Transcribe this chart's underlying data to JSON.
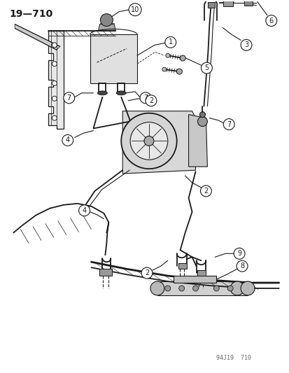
{
  "title": "19—710",
  "watermark": "94J19  710",
  "bg_color": "#ffffff",
  "line_color": "#1a1a1a",
  "figsize": [
    4.14,
    5.33
  ],
  "dpi": 100
}
